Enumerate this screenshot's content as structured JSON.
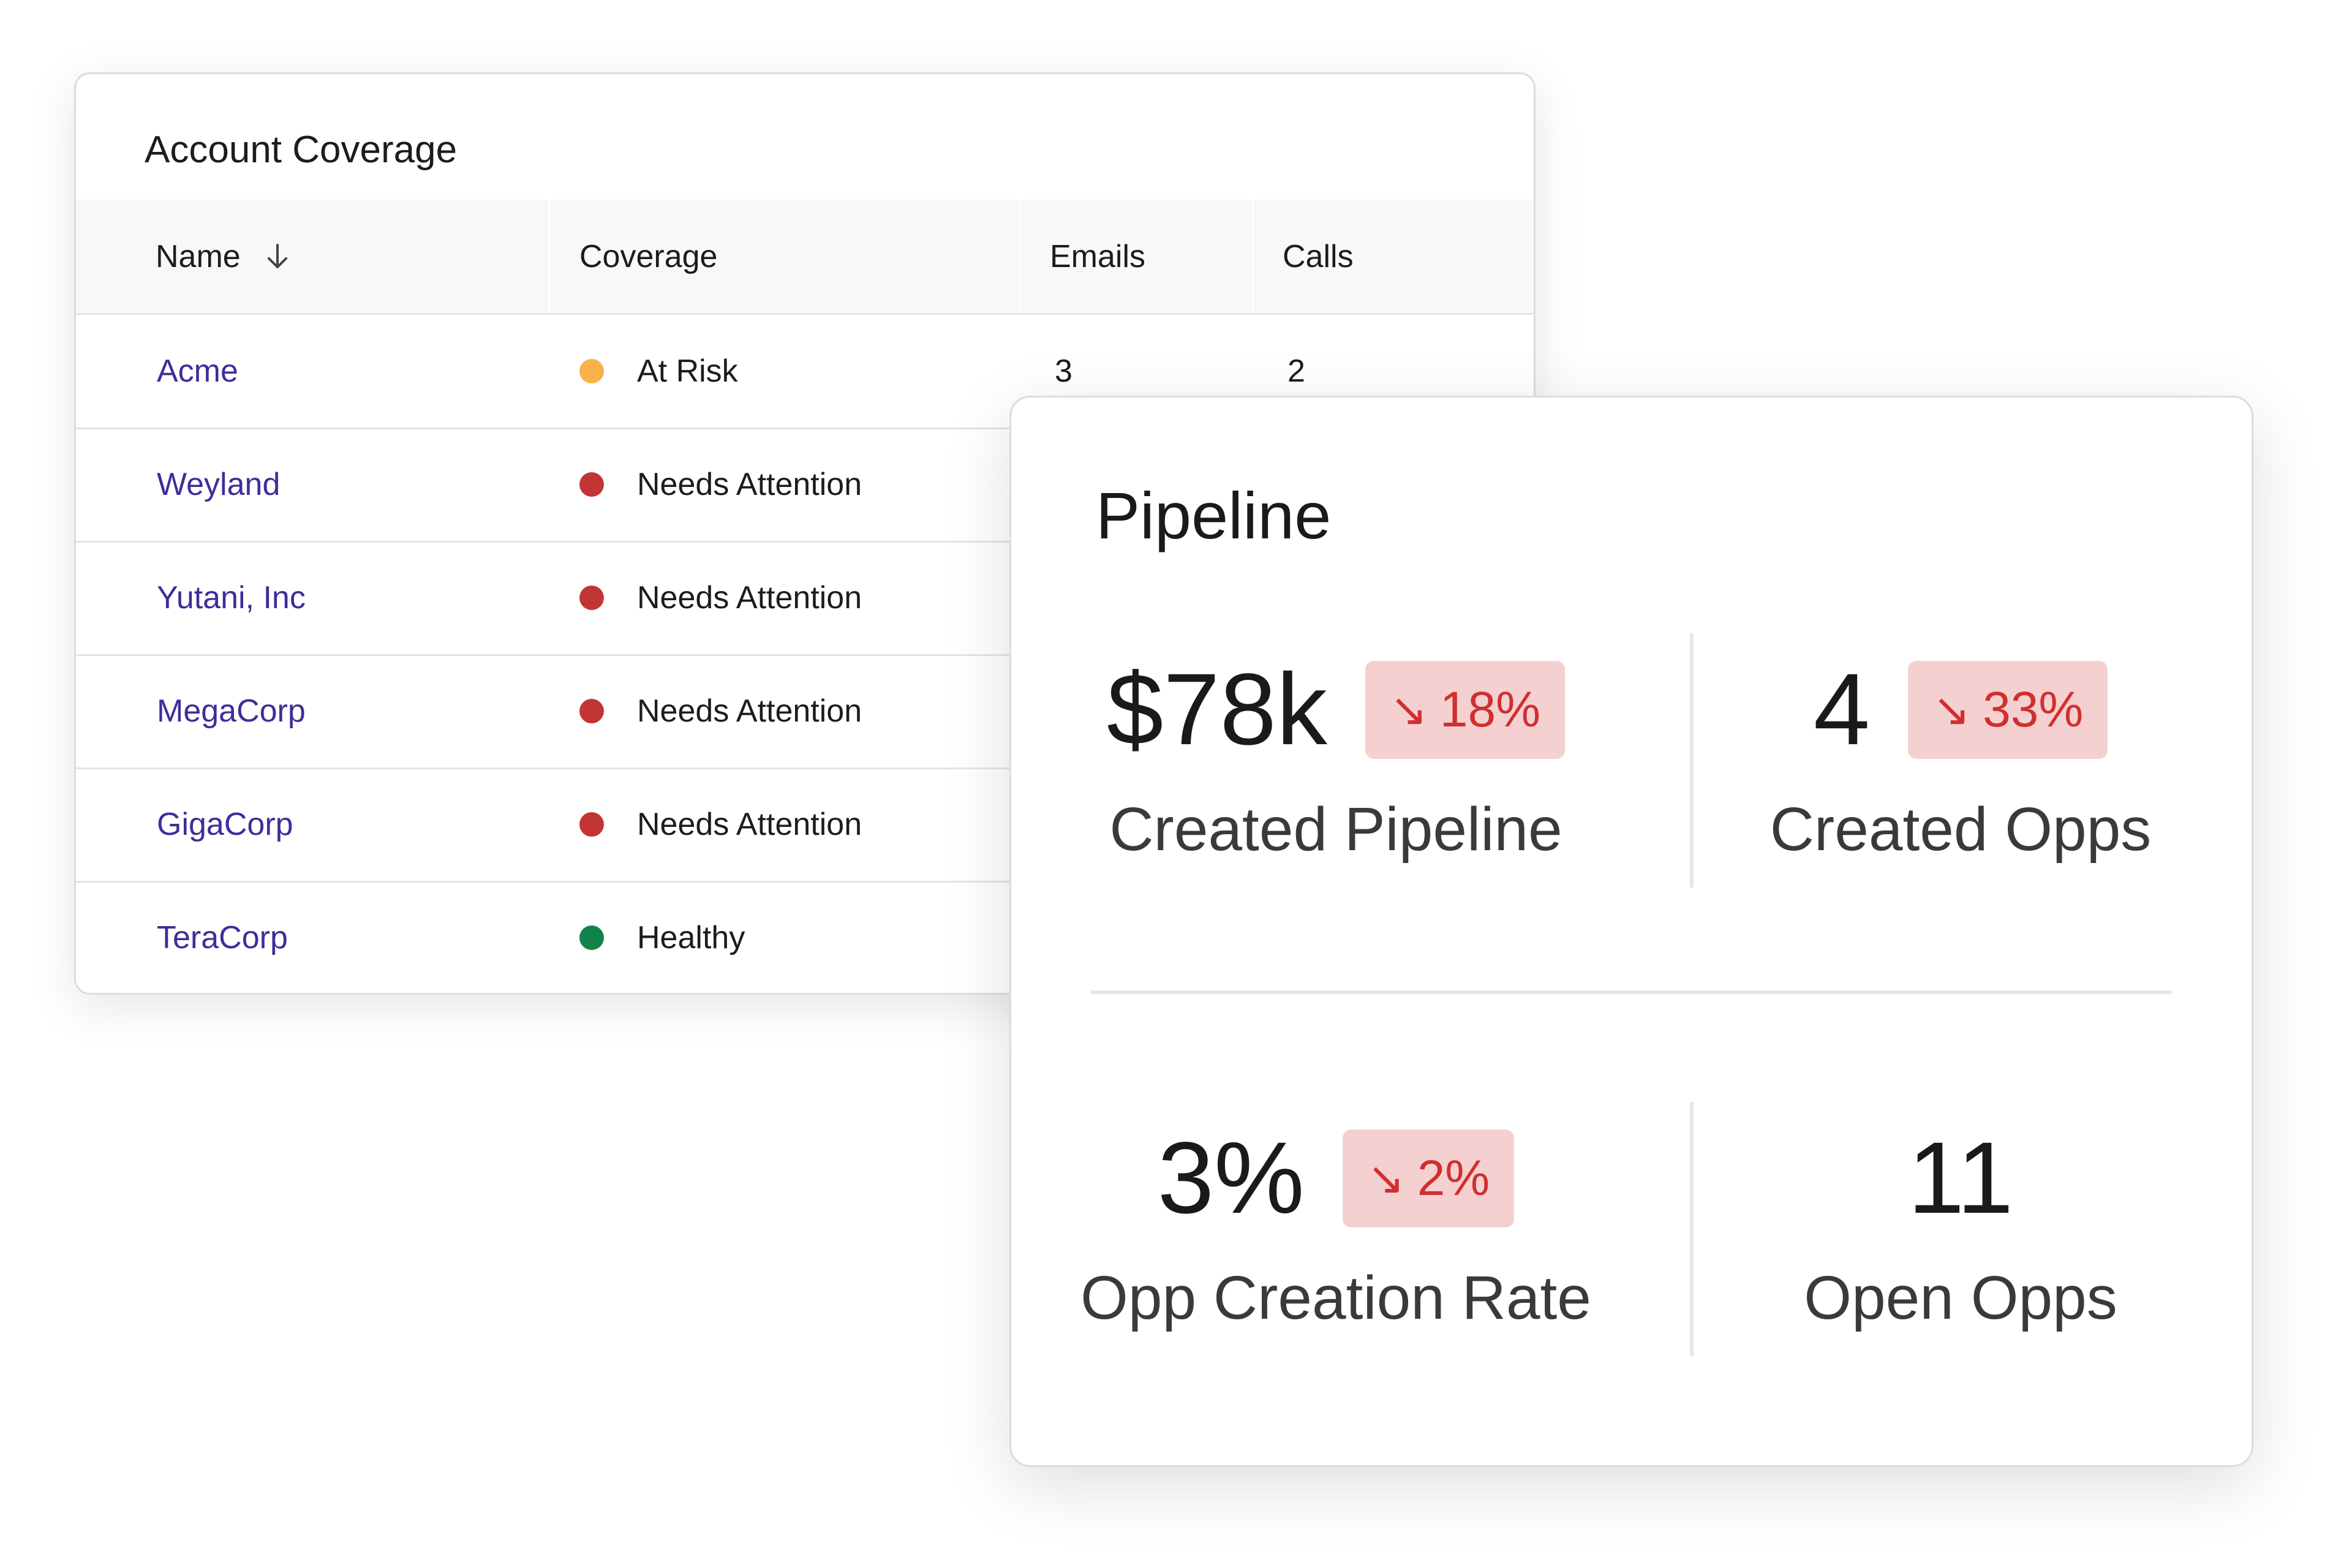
{
  "account_coverage": {
    "title": "Account Coverage",
    "columns": {
      "name": "Name",
      "coverage": "Coverage",
      "emails": "Emails",
      "calls": "Calls"
    },
    "rows": [
      {
        "name": "Acme",
        "coverage": "At Risk",
        "status_color": "#f7b24a",
        "emails": "3",
        "calls": "2"
      },
      {
        "name": "Weyland",
        "coverage": "Needs Attention",
        "status_color": "#c23535"
      },
      {
        "name": "Yutani, Inc",
        "coverage": "Needs Attention",
        "status_color": "#c23535"
      },
      {
        "name": "MegaCorp",
        "coverage": "Needs Attention",
        "status_color": "#c23535"
      },
      {
        "name": "GigaCorp",
        "coverage": "Needs Attention",
        "status_color": "#c23535"
      },
      {
        "name": "TeraCorp",
        "coverage": "Healthy",
        "status_color": "#11824a"
      }
    ]
  },
  "pipeline": {
    "title": "Pipeline",
    "metrics": [
      {
        "value": "$78k",
        "label": "Created Pipeline",
        "delta": "18%",
        "direction": "down"
      },
      {
        "value": "4",
        "label": "Created Opps",
        "delta": "33%",
        "direction": "down"
      },
      {
        "value": "3%",
        "label": "Opp Creation Rate",
        "delta": "2%",
        "direction": "down"
      },
      {
        "value": "11",
        "label": "Open Opps"
      }
    ]
  },
  "colors": {
    "link": "#3b2f9a",
    "negative_badge_bg": "#f5d0d0",
    "negative_badge_text": "#d12f2f",
    "at_risk": "#f7b24a",
    "needs_attention": "#c23535",
    "healthy": "#11824a"
  },
  "icons": {
    "sort": "arrow-down-icon",
    "trend_down": "arrow-down-right-icon"
  }
}
